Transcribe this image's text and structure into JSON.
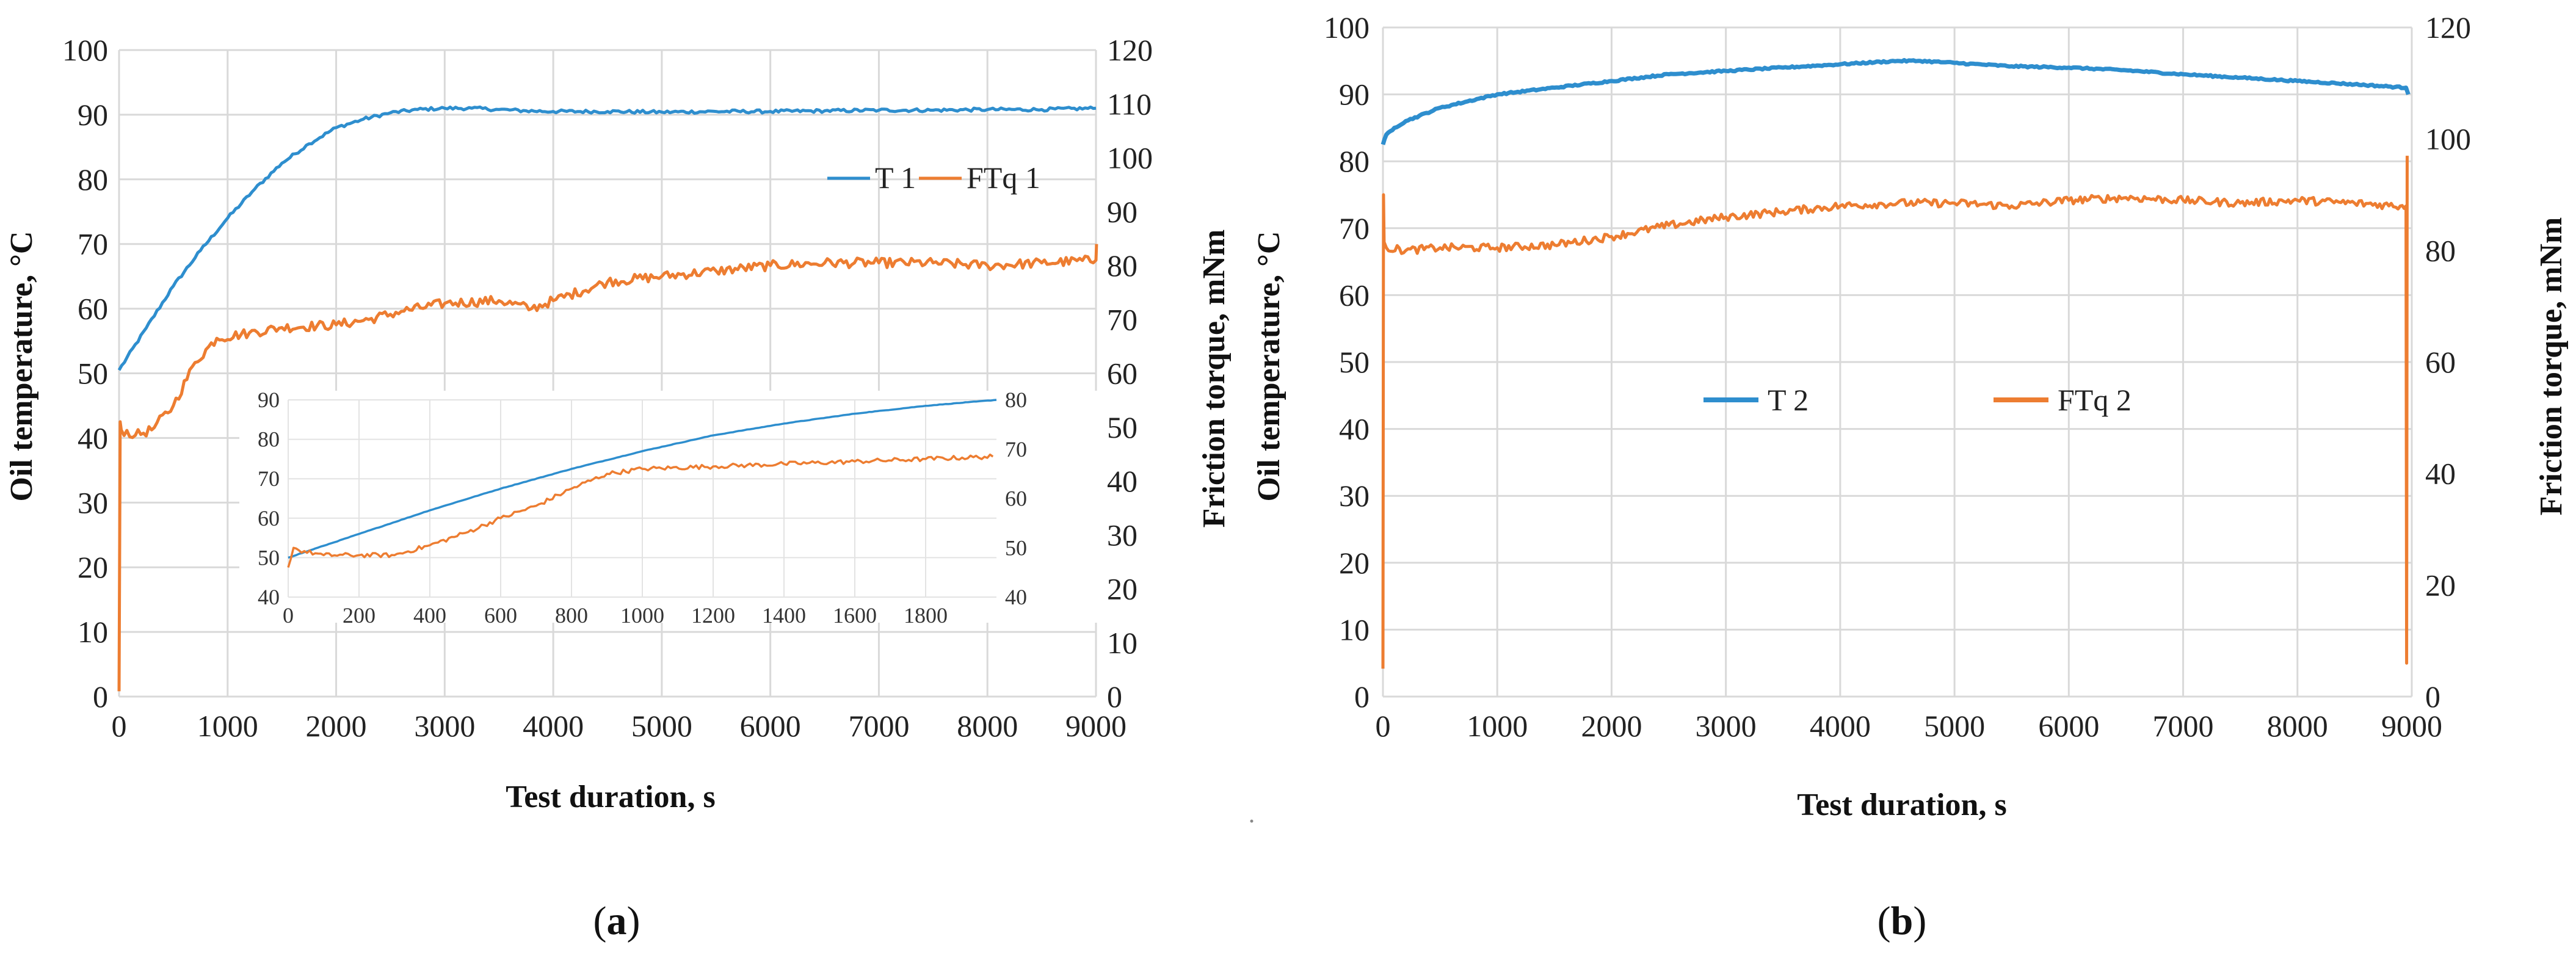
{
  "colors": {
    "temperature": "#2E8ECE",
    "torque": "#ED7D31"
  },
  "chart_data": [
    {
      "id": "a",
      "type": "line",
      "panel_label": "a",
      "xlabel": "Test duration, s",
      "ylabel": "Oil temperature, °C",
      "y2label": "Friction torque, mNm",
      "xlim": [
        0,
        9000
      ],
      "ylim": [
        0,
        100
      ],
      "y2lim": [
        0,
        120
      ],
      "xticks": [
        "0",
        "1000",
        "2000",
        "3000",
        "4000",
        "5000",
        "6000",
        "7000",
        "8000",
        "9000"
      ],
      "yticks": [
        "0",
        "10",
        "20",
        "30",
        "40",
        "50",
        "60",
        "70",
        "80",
        "90",
        "100"
      ],
      "y2ticks": [
        "0",
        "10",
        "20",
        "30",
        "40",
        "50",
        "60",
        "70",
        "80",
        "90",
        "100",
        "110",
        "120"
      ],
      "legend_position": "upper-right",
      "series": [
        {
          "name": "T 1",
          "axis": "y",
          "color_key": "temperature",
          "x": [
            0,
            250,
            500,
            750,
            1000,
            1250,
            1500,
            1750,
            2000,
            2250,
            2500,
            2750,
            3000,
            3250,
            3500,
            3750,
            4000,
            4500,
            5000,
            5500,
            6000,
            6500,
            7000,
            7500,
            8000,
            8500,
            9000
          ],
          "y": [
            50.5,
            57,
            63.5,
            69,
            74,
            78.5,
            82.5,
            85.5,
            88,
            89.3,
            90.3,
            90.8,
            91,
            91,
            90.8,
            90.6,
            90.5,
            90.5,
            90.4,
            90.5,
            90.5,
            90.6,
            90.7,
            90.7,
            90.8,
            90.8,
            91
          ]
        },
        {
          "name": "FTq 1",
          "axis": "y2",
          "color_key": "torque",
          "x": [
            0,
            10,
            20,
            150,
            300,
            500,
            700,
            900,
            1200,
            1500,
            2000,
            2300,
            2600,
            3000,
            3500,
            3800,
            4000,
            4500,
            5000,
            5500,
            6000,
            6500,
            7000,
            7500,
            8000,
            8500,
            9000,
            9005
          ],
          "y": [
            1,
            51,
            49.5,
            48.5,
            49.5,
            54,
            62,
            66.5,
            67.5,
            68.5,
            69,
            70,
            71.5,
            73,
            73.5,
            72,
            73.5,
            77,
            78,
            79,
            80,
            80.5,
            80.5,
            80.5,
            80,
            80.5,
            81,
            84
          ]
        }
      ],
      "inset": {
        "xlim": [
          0,
          2000
        ],
        "ylim": [
          40,
          90
        ],
        "y2lim": [
          40,
          80
        ],
        "xticks": [
          "0",
          "200",
          "400",
          "600",
          "800",
          "1000",
          "1200",
          "1400",
          "1600",
          "1800"
        ],
        "yticks": [
          "40",
          "50",
          "60",
          "70",
          "80",
          "90"
        ],
        "y2ticks": [
          "40",
          "50",
          "60",
          "70",
          "80"
        ],
        "series": [
          {
            "name": "T 1",
            "axis": "y",
            "color_key": "temperature",
            "x": [
              0,
              100,
              200,
              400,
              600,
              800,
              1000,
              1200,
              1400,
              1600,
              1800,
              2000
            ],
            "y": [
              50,
              53,
              56,
              62,
              67.5,
              72.5,
              77,
              81,
              84,
              86.5,
              88.5,
              90
            ]
          },
          {
            "name": "FTq 1",
            "axis": "y2",
            "color_key": "torque",
            "x": [
              0,
              15,
              30,
              100,
              200,
              300,
              400,
              500,
              600,
              700,
              800,
              900,
              1000,
              1200,
              1400,
              1600,
              1800,
              1990
            ],
            "y": [
              46,
              50,
              49.5,
              48.5,
              48.5,
              48.5,
              50.5,
              53,
              56,
              58.5,
              62,
              65,
              66,
              66.5,
              67,
              67.5,
              68,
              68.5
            ]
          }
        ]
      }
    },
    {
      "id": "b",
      "type": "line",
      "panel_label": "b",
      "xlabel": "Test duration, s",
      "ylabel": "Oil temperature, °C",
      "y2label": "Friction torque, mNm",
      "xlim": [
        0,
        9000
      ],
      "ylim": [
        0,
        100
      ],
      "y2lim": [
        0,
        120
      ],
      "xticks": [
        "0",
        "1000",
        "2000",
        "3000",
        "4000",
        "5000",
        "6000",
        "7000",
        "8000",
        "9000"
      ],
      "yticks": [
        "0",
        "10",
        "20",
        "30",
        "40",
        "50",
        "60",
        "70",
        "80",
        "90",
        "100"
      ],
      "y2ticks": [
        "0",
        "20",
        "40",
        "60",
        "80",
        "100",
        "120"
      ],
      "legend_position": "center",
      "series": [
        {
          "name": "T 2",
          "axis": "y",
          "color_key": "temperature",
          "x": [
            0,
            30,
            100,
            200,
            500,
            1000,
            1500,
            2000,
            2500,
            3000,
            3500,
            4000,
            4500,
            4700,
            5000,
            5500,
            6000,
            6500,
            7000,
            7500,
            8000,
            8500,
            8950,
            8970
          ],
          "y": [
            82.5,
            84,
            85,
            86,
            88,
            90,
            91,
            92,
            93,
            93.5,
            94,
            94.5,
            95,
            95,
            94.7,
            94.2,
            94,
            93.6,
            93,
            92.5,
            92,
            91.5,
            91,
            90
          ]
        },
        {
          "name": "FTq 2",
          "axis": "y2",
          "color_key": "torque",
          "x": [
            0,
            5,
            10,
            30,
            200,
            500,
            1000,
            1500,
            2000,
            2500,
            3000,
            3500,
            4000,
            4500,
            5000,
            5500,
            6000,
            6500,
            7000,
            7500,
            8000,
            8500,
            8900,
            8950,
            8955,
            8960
          ],
          "y": [
            5,
            90,
            81.5,
            80.5,
            80,
            80.5,
            80.5,
            81,
            82.5,
            84.5,
            86,
            87,
            88,
            88.5,
            88.5,
            88,
            89,
            89.5,
            89,
            88.5,
            89,
            88.5,
            88,
            88,
            6,
            97
          ]
        }
      ]
    }
  ]
}
